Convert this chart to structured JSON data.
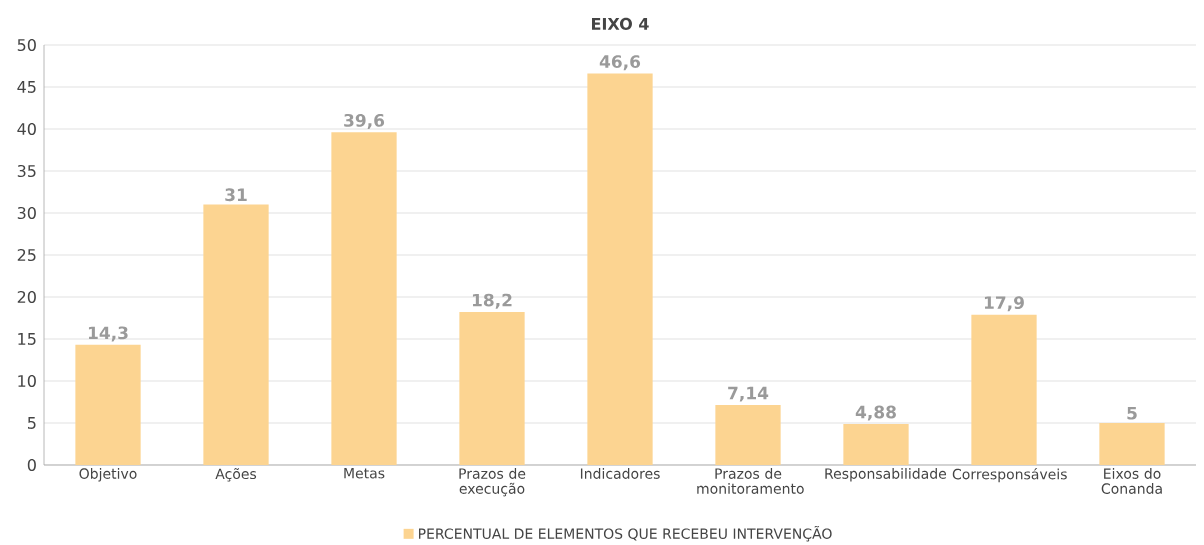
{
  "chart_data": {
    "type": "bar",
    "title": "EIXO 4",
    "categories": [
      "Objetivo",
      "Ações",
      "Metas",
      "Prazos de execução",
      "Indicadores",
      "Prazos de monitoramento",
      "Responsabilidade",
      "Corresponsáveis",
      "Eixos do Conanda"
    ],
    "series": [
      {
        "name": "PERCENTUAL DE ELEMENTOS QUE RECEBEU INTERVENÇÃO",
        "color": "#fcd491",
        "values": [
          14.3,
          31,
          39.6,
          18.2,
          46.6,
          7.14,
          4.88,
          17.9,
          5
        ],
        "value_labels": [
          "14,3",
          "31",
          "39,6",
          "18,2",
          "46,6",
          "7,14",
          "4,88",
          "17,9",
          "5"
        ]
      }
    ],
    "ylim": [
      0,
      50
    ],
    "yticks": [
      0,
      5,
      10,
      15,
      20,
      25,
      30,
      35,
      40,
      45,
      50
    ],
    "grid": "y",
    "legend": "bottom"
  }
}
